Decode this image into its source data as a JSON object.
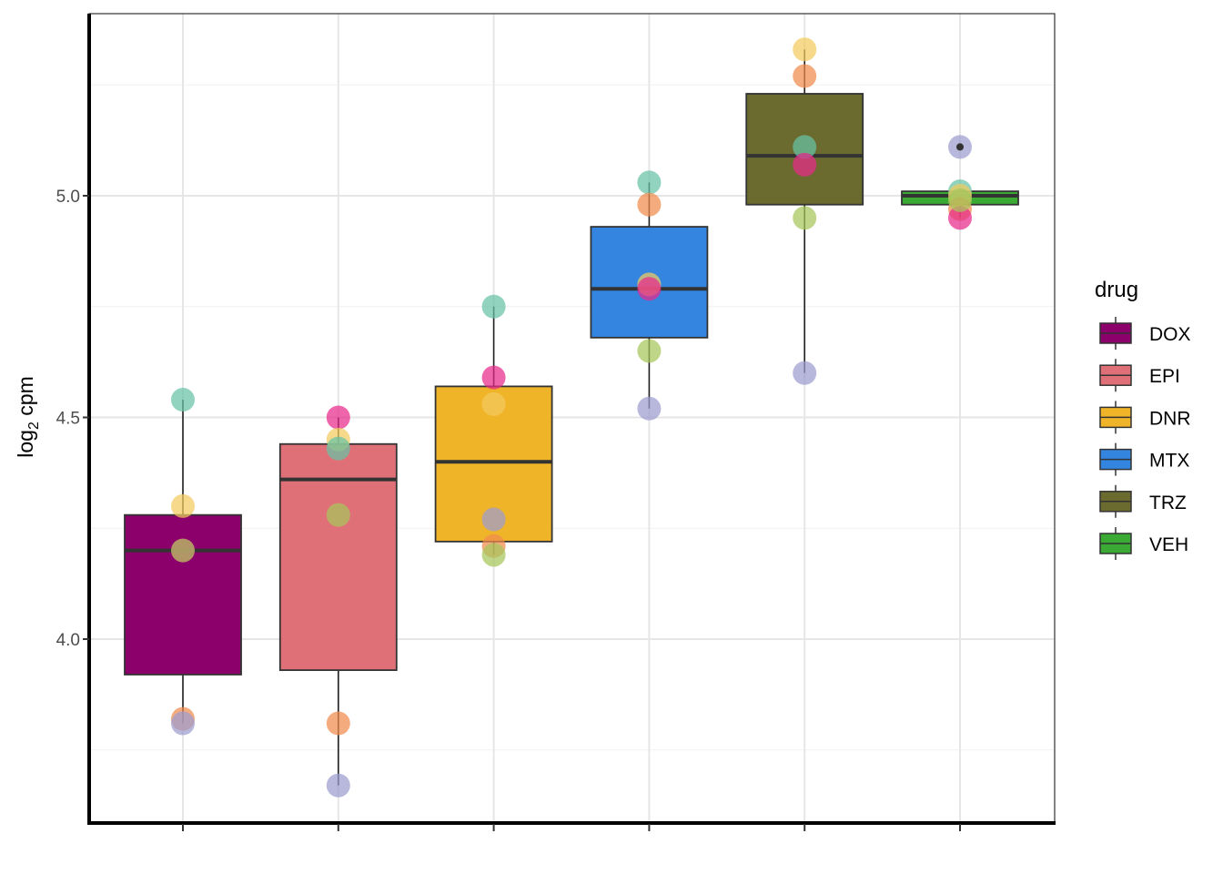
{
  "chart_data": {
    "type": "box",
    "ylabel": "log",
    "ylabel_sub": "2",
    "ylabel_rest": " cpm",
    "xlabel": "",
    "ylim": [
      3.6,
      5.38
    ],
    "y_ticks": [
      4.0,
      4.5,
      5.0
    ],
    "y_tick_labels": [
      "4.0",
      "4.5",
      "5.0"
    ],
    "y_minor_ticks": [
      3.75,
      4.25,
      4.75,
      5.25
    ],
    "grid": true,
    "legend": {
      "title": "drug",
      "position": "right"
    },
    "categories": [
      "DOX",
      "EPI",
      "DNR",
      "MTX",
      "TRZ",
      "VEH"
    ],
    "boxes": [
      {
        "name": "DOX",
        "color": "#8B006B",
        "q1": 3.92,
        "median": 4.2,
        "q3": 4.28,
        "whisker_low": 3.81,
        "whisker_high": 4.54
      },
      {
        "name": "EPI",
        "color": "#E07078",
        "q1": 3.93,
        "median": 4.36,
        "q3": 4.44,
        "whisker_low": 3.67,
        "whisker_high": 4.5
      },
      {
        "name": "DNR",
        "color": "#F0B429",
        "q1": 4.22,
        "median": 4.4,
        "q3": 4.57,
        "whisker_low": 4.19,
        "whisker_high": 4.75
      },
      {
        "name": "MTX",
        "color": "#3385E0",
        "q1": 4.68,
        "median": 4.79,
        "q3": 4.93,
        "whisker_low": 4.52,
        "whisker_high": 5.03
      },
      {
        "name": "TRZ",
        "color": "#6B6B30",
        "q1": 4.98,
        "median": 5.09,
        "q3": 5.23,
        "whisker_low": 4.6,
        "whisker_high": 5.33
      },
      {
        "name": "VEH",
        "color": "#3BAA35",
        "q1": 4.98,
        "median": 5.0,
        "q3": 5.01,
        "whisker_low": 4.95,
        "whisker_high": 5.01,
        "outliers": [
          5.11
        ]
      }
    ],
    "points": [
      {
        "group": "DOX",
        "y": 4.54,
        "color": "#66C2A5"
      },
      {
        "group": "DOX",
        "y": 4.3,
        "color": "#F2CA5E"
      },
      {
        "group": "DOX",
        "y": 4.2,
        "color": "#E7298A"
      },
      {
        "group": "DOX",
        "y": 4.2,
        "color": "#A6C65C"
      },
      {
        "group": "DOX",
        "y": 3.82,
        "color": "#F08C4D"
      },
      {
        "group": "DOX",
        "y": 3.81,
        "color": "#9C9CD0"
      },
      {
        "group": "EPI",
        "y": 4.5,
        "color": "#E7298A"
      },
      {
        "group": "EPI",
        "y": 4.45,
        "color": "#F2CA5E"
      },
      {
        "group": "EPI",
        "y": 4.43,
        "color": "#66C2A5"
      },
      {
        "group": "EPI",
        "y": 4.28,
        "color": "#A6C65C"
      },
      {
        "group": "EPI",
        "y": 3.81,
        "color": "#F08C4D"
      },
      {
        "group": "EPI",
        "y": 3.67,
        "color": "#9C9CD0"
      },
      {
        "group": "DNR",
        "y": 4.75,
        "color": "#66C2A5"
      },
      {
        "group": "DNR",
        "y": 4.59,
        "color": "#E7298A"
      },
      {
        "group": "DNR",
        "y": 4.53,
        "color": "#F2CA5E"
      },
      {
        "group": "DNR",
        "y": 4.27,
        "color": "#9C9CD0"
      },
      {
        "group": "DNR",
        "y": 4.21,
        "color": "#F08C4D"
      },
      {
        "group": "DNR",
        "y": 4.19,
        "color": "#A6C65C"
      },
      {
        "group": "MTX",
        "y": 5.03,
        "color": "#66C2A5"
      },
      {
        "group": "MTX",
        "y": 4.98,
        "color": "#F08C4D"
      },
      {
        "group": "MTX",
        "y": 4.8,
        "color": "#F2CA5E"
      },
      {
        "group": "MTX",
        "y": 4.79,
        "color": "#E7298A"
      },
      {
        "group": "MTX",
        "y": 4.65,
        "color": "#A6C65C"
      },
      {
        "group": "MTX",
        "y": 4.52,
        "color": "#9C9CD0"
      },
      {
        "group": "TRZ",
        "y": 5.33,
        "color": "#F2CA5E"
      },
      {
        "group": "TRZ",
        "y": 5.27,
        "color": "#F08C4D"
      },
      {
        "group": "TRZ",
        "y": 5.11,
        "color": "#66C2A5"
      },
      {
        "group": "TRZ",
        "y": 5.07,
        "color": "#E7298A"
      },
      {
        "group": "TRZ",
        "y": 4.95,
        "color": "#A6C65C"
      },
      {
        "group": "TRZ",
        "y": 4.6,
        "color": "#9C9CD0"
      },
      {
        "group": "VEH",
        "y": 5.11,
        "color": "#9C9CD0"
      },
      {
        "group": "VEH",
        "y": 5.01,
        "color": "#66C2A5"
      },
      {
        "group": "VEH",
        "y": 5.0,
        "color": "#F2CA5E"
      },
      {
        "group": "VEH",
        "y": 4.97,
        "color": "#F08C4D"
      },
      {
        "group": "VEH",
        "y": 4.95,
        "color": "#E7298A"
      },
      {
        "group": "VEH",
        "y": 4.99,
        "color": "#A6C65C"
      }
    ]
  }
}
